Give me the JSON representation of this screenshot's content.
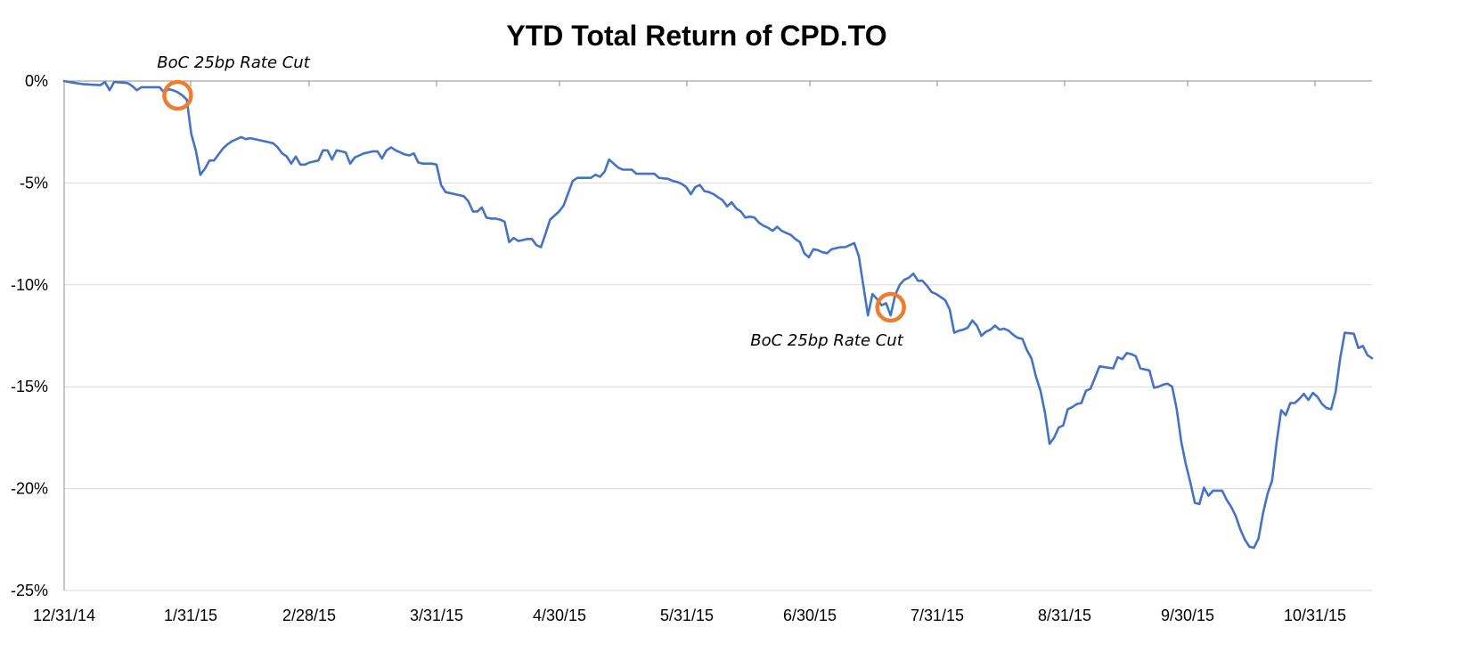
{
  "chart_data": {
    "type": "line",
    "title": "YTD Total Return of CPD.TO",
    "xlabel": "",
    "ylabel": "",
    "x_tick_labels": [
      "12/31/14",
      "1/31/15",
      "2/28/15",
      "3/31/15",
      "4/30/15",
      "5/31/15",
      "6/30/15",
      "7/31/15",
      "8/31/15",
      "9/30/15",
      "10/31/15"
    ],
    "y_tick_labels": [
      "0%",
      "-5%",
      "-10%",
      "-15%",
      "-20%",
      "-25%"
    ],
    "ylim": [
      -25,
      0
    ],
    "x_range": [
      "12/31/14",
      "11/10/15"
    ],
    "grid": "horizontal",
    "legend": "none",
    "line_color": "#4472C4",
    "marker_color": "#ED7D31",
    "series": [
      {
        "values_pct": [
          [
            0,
            0
          ],
          [
            2,
            -0.08
          ],
          [
            4,
            -0.15
          ],
          [
            6,
            -0.18
          ],
          [
            8,
            -0.2
          ],
          [
            9,
            -0.05
          ],
          [
            10,
            -0.45
          ],
          [
            11,
            -0.05
          ],
          [
            13,
            -0.08
          ],
          [
            14,
            -0.1
          ],
          [
            15,
            -0.25
          ],
          [
            16,
            -0.45
          ],
          [
            17,
            -0.3
          ],
          [
            18,
            -0.3
          ],
          [
            21,
            -0.3
          ],
          [
            22,
            -0.55
          ],
          [
            23,
            -0.4
          ],
          [
            24,
            -0.45
          ],
          [
            25,
            -0.55
          ],
          [
            26,
            -0.7
          ],
          [
            27,
            -0.9
          ],
          [
            28,
            -2.6
          ],
          [
            29,
            -3.4
          ],
          [
            30,
            -4.6
          ],
          [
            31,
            -4.3
          ],
          [
            32,
            -3.9
          ],
          [
            33,
            -3.9
          ],
          [
            34,
            -3.6
          ],
          [
            35,
            -3.3
          ],
          [
            36,
            -3.1
          ],
          [
            37,
            -2.95
          ],
          [
            38,
            -2.85
          ],
          [
            39,
            -2.75
          ],
          [
            40,
            -2.85
          ],
          [
            41,
            -2.8
          ],
          [
            43,
            -2.9
          ],
          [
            44,
            -2.95
          ],
          [
            45,
            -3.0
          ],
          [
            46,
            -3.05
          ],
          [
            47,
            -3.25
          ],
          [
            48,
            -3.55
          ],
          [
            49,
            -3.7
          ],
          [
            50,
            -4.05
          ],
          [
            51,
            -3.7
          ],
          [
            52,
            -4.1
          ],
          [
            53,
            -4.1
          ],
          [
            54,
            -4.0
          ],
          [
            55,
            -3.95
          ],
          [
            56,
            -3.9
          ],
          [
            57,
            -3.4
          ],
          [
            58,
            -3.4
          ],
          [
            59,
            -3.85
          ],
          [
            60,
            -3.4
          ],
          [
            61,
            -3.45
          ],
          [
            62,
            -3.5
          ],
          [
            63,
            -4.05
          ],
          [
            64,
            -3.75
          ],
          [
            65,
            -3.65
          ],
          [
            66,
            -3.55
          ],
          [
            67,
            -3.5
          ],
          [
            68,
            -3.45
          ],
          [
            69,
            -3.45
          ],
          [
            70,
            -3.8
          ],
          [
            71,
            -3.4
          ],
          [
            72,
            -3.25
          ],
          [
            73,
            -3.4
          ],
          [
            74,
            -3.5
          ],
          [
            75,
            -3.6
          ],
          [
            76,
            -3.65
          ],
          [
            77,
            -3.55
          ],
          [
            78,
            -4.0
          ],
          [
            79,
            -4.05
          ],
          [
            80,
            -4.05
          ],
          [
            81,
            -4.05
          ],
          [
            82,
            -4.1
          ],
          [
            83,
            -5.1
          ],
          [
            84,
            -5.45
          ],
          [
            85,
            -5.5
          ],
          [
            87,
            -5.6
          ],
          [
            88,
            -5.65
          ],
          [
            89,
            -5.9
          ],
          [
            90,
            -6.4
          ],
          [
            91,
            -6.4
          ],
          [
            92,
            -6.2
          ],
          [
            93,
            -6.7
          ],
          [
            94,
            -6.75
          ],
          [
            95,
            -6.75
          ],
          [
            96,
            -6.8
          ],
          [
            97,
            -6.9
          ],
          [
            98,
            -7.9
          ],
          [
            99,
            -7.7
          ],
          [
            100,
            -7.85
          ],
          [
            101,
            -7.8
          ],
          [
            102,
            -7.75
          ],
          [
            103,
            -7.75
          ],
          [
            104,
            -8.05
          ],
          [
            105,
            -8.15
          ],
          [
            106,
            -7.5
          ],
          [
            107,
            -6.8
          ],
          [
            108,
            -6.6
          ],
          [
            109,
            -6.4
          ],
          [
            110,
            -6.1
          ],
          [
            111,
            -5.5
          ],
          [
            112,
            -4.9
          ],
          [
            113,
            -4.75
          ],
          [
            114,
            -4.75
          ],
          [
            115,
            -4.75
          ],
          [
            116,
            -4.75
          ],
          [
            117,
            -4.6
          ],
          [
            118,
            -4.7
          ],
          [
            119,
            -4.45
          ],
          [
            120,
            -3.85
          ],
          [
            121,
            -4.05
          ],
          [
            122,
            -4.25
          ],
          [
            123,
            -4.35
          ],
          [
            125,
            -4.35
          ],
          [
            126,
            -4.55
          ],
          [
            128,
            -4.55
          ],
          [
            130,
            -4.55
          ],
          [
            131,
            -4.75
          ],
          [
            133,
            -4.8
          ],
          [
            134,
            -4.9
          ],
          [
            135,
            -4.95
          ],
          [
            136,
            -5.05
          ],
          [
            137,
            -5.2
          ],
          [
            138,
            -5.55
          ],
          [
            139,
            -5.2
          ],
          [
            140,
            -5.1
          ],
          [
            141,
            -5.4
          ],
          [
            142,
            -5.45
          ],
          [
            143,
            -5.55
          ],
          [
            144,
            -5.7
          ],
          [
            145,
            -5.85
          ],
          [
            146,
            -6.15
          ],
          [
            147,
            -5.95
          ],
          [
            148,
            -6.25
          ],
          [
            149,
            -6.4
          ],
          [
            150,
            -6.7
          ],
          [
            151,
            -6.65
          ],
          [
            152,
            -6.7
          ],
          [
            153,
            -6.95
          ],
          [
            154,
            -7.1
          ],
          [
            155,
            -7.2
          ],
          [
            156,
            -7.35
          ],
          [
            157,
            -7.15
          ],
          [
            158,
            -7.35
          ],
          [
            159,
            -7.45
          ],
          [
            160,
            -7.55
          ],
          [
            161,
            -7.75
          ],
          [
            162,
            -7.9
          ],
          [
            163,
            -8.45
          ],
          [
            164,
            -8.65
          ],
          [
            165,
            -8.25
          ],
          [
            166,
            -8.3
          ],
          [
            167,
            -8.4
          ],
          [
            168,
            -8.45
          ],
          [
            169,
            -8.25
          ],
          [
            170,
            -8.2
          ],
          [
            171,
            -8.15
          ],
          [
            172,
            -8.15
          ],
          [
            173,
            -8.05
          ],
          [
            174,
            -7.95
          ],
          [
            175,
            -8.6
          ],
          [
            177,
            -11.5
          ],
          [
            178,
            -10.45
          ],
          [
            179,
            -10.7
          ],
          [
            180,
            -11.0
          ],
          [
            181,
            -10.9
          ],
          [
            182,
            -11.5
          ],
          [
            183,
            -10.5
          ],
          [
            184,
            -10.0
          ],
          [
            185,
            -9.75
          ],
          [
            186,
            -9.65
          ],
          [
            187,
            -9.45
          ],
          [
            188,
            -9.8
          ],
          [
            189,
            -9.8
          ],
          [
            190,
            -10.05
          ],
          [
            191,
            -10.35
          ],
          [
            192,
            -10.45
          ],
          [
            193,
            -10.6
          ],
          [
            194,
            -10.75
          ],
          [
            195,
            -11.2
          ],
          [
            196,
            -12.35
          ],
          [
            197,
            -12.25
          ],
          [
            198,
            -12.2
          ],
          [
            199,
            -12.1
          ],
          [
            200,
            -11.75
          ],
          [
            201,
            -12.0
          ],
          [
            202,
            -12.5
          ],
          [
            203,
            -12.3
          ],
          [
            204,
            -12.2
          ],
          [
            205,
            -12.0
          ],
          [
            206,
            -12.2
          ],
          [
            207,
            -12.15
          ],
          [
            208,
            -12.25
          ],
          [
            209,
            -12.45
          ],
          [
            210,
            -12.6
          ],
          [
            211,
            -12.65
          ],
          [
            212,
            -13.2
          ],
          [
            213,
            -13.6
          ],
          [
            214,
            -14.5
          ],
          [
            215,
            -15.2
          ],
          [
            216,
            -16.3
          ],
          [
            217,
            -17.8
          ],
          [
            218,
            -17.5
          ],
          [
            219,
            -17.0
          ],
          [
            220,
            -16.9
          ],
          [
            221,
            -16.1
          ],
          [
            222,
            -16.0
          ],
          [
            223,
            -15.85
          ],
          [
            224,
            -15.8
          ],
          [
            225,
            -15.2
          ],
          [
            226,
            -15.1
          ],
          [
            227,
            -14.55
          ],
          [
            228,
            -14.0
          ],
          [
            231,
            -14.1
          ],
          [
            232,
            -13.55
          ],
          [
            233,
            -13.65
          ],
          [
            234,
            -13.35
          ],
          [
            235,
            -13.4
          ],
          [
            236,
            -13.5
          ],
          [
            237,
            -14.1
          ],
          [
            238,
            -14.15
          ],
          [
            239,
            -14.2
          ],
          [
            240,
            -15.05
          ],
          [
            241,
            -15.0
          ],
          [
            242,
            -14.9
          ],
          [
            243,
            -14.85
          ],
          [
            244,
            -15.0
          ],
          [
            245,
            -16.1
          ],
          [
            246,
            -17.7
          ],
          [
            247,
            -18.8
          ],
          [
            248,
            -19.7
          ],
          [
            249,
            -20.7
          ],
          [
            250,
            -20.75
          ],
          [
            251,
            -19.95
          ],
          [
            252,
            -20.35
          ],
          [
            253,
            -20.1
          ],
          [
            255,
            -20.1
          ],
          [
            256,
            -20.55
          ],
          [
            257,
            -20.9
          ],
          [
            258,
            -21.35
          ],
          [
            259,
            -22.0
          ],
          [
            260,
            -22.5
          ],
          [
            261,
            -22.85
          ],
          [
            262,
            -22.9
          ],
          [
            263,
            -22.45
          ],
          [
            264,
            -21.2
          ],
          [
            265,
            -20.25
          ],
          [
            266,
            -19.6
          ],
          [
            267,
            -17.7
          ],
          [
            268,
            -16.15
          ],
          [
            269,
            -16.4
          ],
          [
            270,
            -15.8
          ],
          [
            271,
            -15.8
          ],
          [
            272,
            -15.6
          ],
          [
            273,
            -15.35
          ],
          [
            274,
            -15.65
          ],
          [
            275,
            -15.3
          ],
          [
            276,
            -15.5
          ],
          [
            277,
            -15.85
          ],
          [
            278,
            -16.05
          ],
          [
            279,
            -16.1
          ],
          [
            280,
            -15.25
          ],
          [
            281,
            -13.6
          ],
          [
            282,
            -12.35
          ],
          [
            284,
            -12.4
          ],
          [
            285,
            -13.1
          ],
          [
            286,
            -13.0
          ],
          [
            287,
            -13.45
          ],
          [
            288,
            -13.6
          ]
        ]
      }
    ],
    "annotations": [
      {
        "text": "BoC 25bp Rate Cut",
        "x_index": 25,
        "y": -0.7
      },
      {
        "text": "BoC 25bp Rate Cut",
        "x_index": 182,
        "y": -11.1
      }
    ]
  }
}
